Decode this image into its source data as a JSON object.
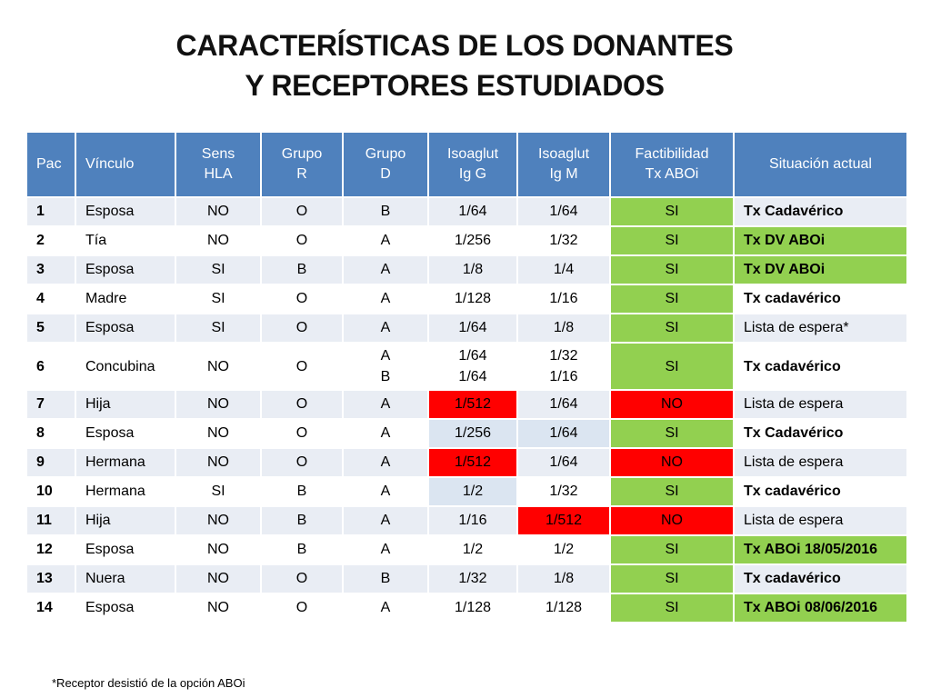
{
  "title": {
    "line1": "CARACTERÍSTICAS DE LOS DONANTES",
    "line2": "Y RECEPTORES ESTUDIADOS"
  },
  "table": {
    "headers": [
      [
        "Pac"
      ],
      [
        "Vínculo"
      ],
      [
        "Sens",
        "HLA"
      ],
      [
        "Grupo",
        "R"
      ],
      [
        "Grupo",
        "D"
      ],
      [
        "Isoaglut",
        "Ig G"
      ],
      [
        "Isoaglut",
        "Ig M"
      ],
      [
        "Factibilidad",
        "Tx ABOi"
      ],
      [
        "Situación actual"
      ]
    ],
    "rows": [
      {
        "pac": "1",
        "vinculo": "Esposa",
        "sens": "NO",
        "grupo_r": "O",
        "grupo_d": [
          "B"
        ],
        "igg": [
          "1/64"
        ],
        "igm": [
          "1/64"
        ],
        "fact": "SI",
        "sit": "Tx Cadavérico",
        "sit_bold": true,
        "sit_green": false,
        "fact_color": "green",
        "igg_color": "",
        "igm_color": ""
      },
      {
        "pac": "2",
        "vinculo": "Tía",
        "sens": "NO",
        "grupo_r": "O",
        "grupo_d": [
          "A"
        ],
        "igg": [
          "1/256"
        ],
        "igm": [
          "1/32"
        ],
        "fact": "SI",
        "sit": "Tx  DV ABOi",
        "sit_bold": true,
        "sit_green": true,
        "fact_color": "green",
        "igg_color": "",
        "igm_color": ""
      },
      {
        "pac": "3",
        "vinculo": "Esposa",
        "sens": "SI",
        "grupo_r": "B",
        "grupo_d": [
          "A"
        ],
        "igg": [
          "1/8"
        ],
        "igm": [
          "1/4"
        ],
        "fact": "SI",
        "sit": "Tx  DV ABOi",
        "sit_bold": true,
        "sit_green": true,
        "fact_color": "green",
        "igg_color": "",
        "igm_color": ""
      },
      {
        "pac": "4",
        "vinculo": "Madre",
        "sens": "SI",
        "grupo_r": "O",
        "grupo_d": [
          "A"
        ],
        "igg": [
          "1/128"
        ],
        "igm": [
          "1/16"
        ],
        "fact": "SI",
        "sit": "Tx cadavérico",
        "sit_bold": true,
        "sit_green": false,
        "fact_color": "green",
        "igg_color": "",
        "igm_color": ""
      },
      {
        "pac": "5",
        "vinculo": "Esposa",
        "sens": "SI",
        "grupo_r": "O",
        "grupo_d": [
          "A"
        ],
        "igg": [
          "1/64"
        ],
        "igm": [
          "1/8"
        ],
        "fact": "SI",
        "sit": "Lista de espera*",
        "sit_bold": false,
        "sit_green": false,
        "fact_color": "green",
        "igg_color": "",
        "igm_color": ""
      },
      {
        "pac": "6",
        "vinculo": "Concubina",
        "sens": "NO",
        "grupo_r": "O",
        "grupo_d": [
          "A",
          "B"
        ],
        "igg": [
          "1/64",
          "1/64"
        ],
        "igm": [
          "1/32",
          "1/16"
        ],
        "fact": "SI",
        "sit": "Tx cadavérico",
        "sit_bold": true,
        "sit_green": false,
        "fact_color": "green",
        "igg_color": "",
        "igm_color": ""
      },
      {
        "pac": "7",
        "vinculo": "Hija",
        "sens": "NO",
        "grupo_r": "O",
        "grupo_d": [
          "A"
        ],
        "igg": [
          "1/512"
        ],
        "igm": [
          "1/64"
        ],
        "fact": "NO",
        "sit": "Lista de espera",
        "sit_bold": false,
        "sit_green": false,
        "fact_color": "red",
        "igg_color": "red",
        "igm_color": ""
      },
      {
        "pac": "8",
        "vinculo": "Esposa",
        "sens": "NO",
        "grupo_r": "O",
        "grupo_d": [
          "A"
        ],
        "igg": [
          "1/256"
        ],
        "igm": [
          "1/64"
        ],
        "fact": "SI",
        "sit": "Tx Cadavérico",
        "sit_bold": true,
        "sit_green": false,
        "fact_color": "green",
        "igg_color": "lblue",
        "igm_color": "lblue"
      },
      {
        "pac": "9",
        "vinculo": "Hermana",
        "sens": "NO",
        "grupo_r": "O",
        "grupo_d": [
          "A"
        ],
        "igg": [
          "1/512"
        ],
        "igm": [
          "1/64"
        ],
        "fact": "NO",
        "sit": "Lista de espera",
        "sit_bold": false,
        "sit_green": false,
        "fact_color": "red",
        "igg_color": "red",
        "igm_color": ""
      },
      {
        "pac": "10",
        "vinculo": "Hermana",
        "sens": "SI",
        "grupo_r": "B",
        "grupo_d": [
          "A"
        ],
        "igg": [
          "1/2"
        ],
        "igm": [
          "1/32"
        ],
        "fact": "SI",
        "sit": "Tx cadavérico",
        "sit_bold": true,
        "sit_green": false,
        "fact_color": "green",
        "igg_color": "lblue",
        "igm_color": ""
      },
      {
        "pac": "11",
        "vinculo": "Hija",
        "sens": "NO",
        "grupo_r": "B",
        "grupo_d": [
          "A"
        ],
        "igg": [
          "1/16"
        ],
        "igm": [
          "1/512"
        ],
        "fact": "NO",
        "sit": "Lista de espera",
        "sit_bold": false,
        "sit_green": false,
        "fact_color": "red",
        "igg_color": "",
        "igm_color": "red"
      },
      {
        "pac": "12",
        "vinculo": "Esposa",
        "sens": "NO",
        "grupo_r": "B",
        "grupo_d": [
          "A"
        ],
        "igg": [
          "1/2"
        ],
        "igm": [
          "1/2"
        ],
        "fact": "SI",
        "sit": "Tx ABOi 18/05/2016",
        "sit_bold": true,
        "sit_green": true,
        "fact_color": "green",
        "igg_color": "",
        "igm_color": ""
      },
      {
        "pac": "13",
        "vinculo": "Nuera",
        "sens": "NO",
        "grupo_r": "O",
        "grupo_d": [
          "B"
        ],
        "igg": [
          "1/32"
        ],
        "igm": [
          "1/8"
        ],
        "fact": "SI",
        "sit": "Tx cadavérico",
        "sit_bold": true,
        "sit_green": false,
        "fact_color": "green",
        "igg_color": "",
        "igm_color": ""
      },
      {
        "pac": "14",
        "vinculo": "Esposa",
        "sens": "NO",
        "grupo_r": "O",
        "grupo_d": [
          "A"
        ],
        "igg": [
          "1/128"
        ],
        "igm": [
          "1/128"
        ],
        "fact": "SI",
        "sit": "Tx ABOi 08/06/2016",
        "sit_bold": true,
        "sit_green": true,
        "fact_color": "green",
        "igg_color": "",
        "igm_color": ""
      }
    ]
  },
  "footnote": "*Receptor desistió de la opción ABOi",
  "colors": {
    "header_blue": "#4f81bd",
    "green": "#92d050",
    "red": "#ff0000",
    "row_stripe": "#e9edf4",
    "light_blue": "#dbe5f1"
  }
}
